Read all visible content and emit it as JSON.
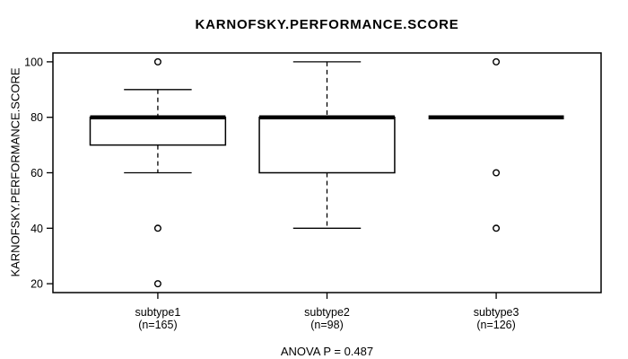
{
  "colors": {
    "foreground": "#000000",
    "background": "#ffffff"
  },
  "chart_data": {
    "type": "boxplot",
    "title": "KARNOFSKY.PERFORMANCE.SCORE",
    "ylabel": "KARNOFSKY.PERFORMANCE.SCORE",
    "xlabel": "",
    "annotation": "ANOVA P = 0.487",
    "ylim": [
      16.8,
      103.2
    ],
    "yticks": [
      20,
      40,
      60,
      80,
      100
    ],
    "grid": false,
    "legend": false,
    "groups": [
      {
        "label": "subtype1",
        "sublabel": "(n=165)",
        "n": 165,
        "q1": 70,
        "median": 80,
        "q3": 80,
        "whisker_low": 60,
        "whisker_high": 90,
        "outliers": [
          100,
          40,
          20
        ]
      },
      {
        "label": "subtype2",
        "sublabel": "(n=98)",
        "n": 98,
        "q1": 60,
        "median": 80,
        "q3": 80,
        "whisker_low": 40,
        "whisker_high": 100,
        "outliers": []
      },
      {
        "label": "subtype3",
        "sublabel": "(n=126)",
        "n": 126,
        "q1": 80,
        "median": 80,
        "q3": 80,
        "whisker_low": 80,
        "whisker_high": 80,
        "outliers": [
          100,
          60,
          40
        ]
      }
    ]
  }
}
